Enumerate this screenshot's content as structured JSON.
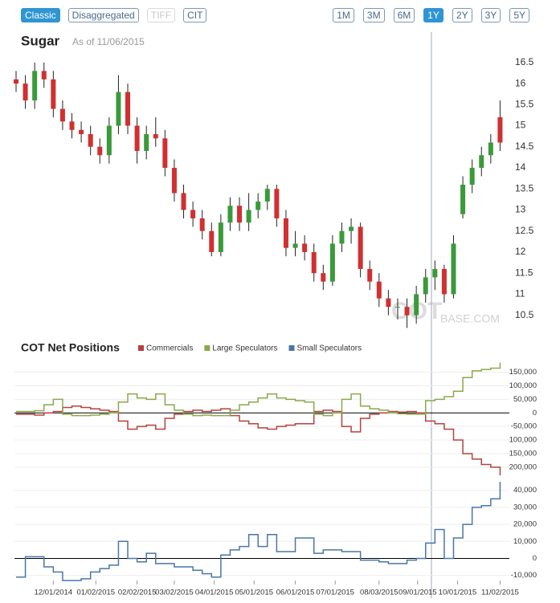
{
  "toolbar": {
    "views": [
      "Classic",
      "Disaggregated",
      "TIFF",
      "CIT"
    ],
    "ranges": [
      "1M",
      "3M",
      "6M",
      "1Y",
      "2Y",
      "3Y",
      "5Y"
    ],
    "active_view": 0,
    "disabled_views": [
      2
    ],
    "active_range": 3
  },
  "watermark": {
    "main": "COT",
    "tail": "BASE.COM"
  },
  "chart_data": [
    {
      "type": "candlestick",
      "title": "Sugar",
      "subtitle": "As of 11/06/2015",
      "up_color": "#3a9a3a",
      "down_color": "#d03030",
      "x": [
        "11/03/2014",
        "11/10/2014",
        "11/17/2014",
        "11/24/2014",
        "12/01/2014",
        "12/08/2014",
        "12/15/2014",
        "12/22/2014",
        "12/29/2014",
        "01/05/2015",
        "01/12/2015",
        "01/19/2015",
        "01/26/2015",
        "02/02/2015",
        "02/09/2015",
        "02/16/2015",
        "02/23/2015",
        "03/02/2015",
        "03/09/2015",
        "03/16/2015",
        "03/23/2015",
        "03/30/2015",
        "04/06/2015",
        "04/13/2015",
        "04/20/2015",
        "04/27/2015",
        "05/04/2015",
        "05/11/2015",
        "05/18/2015",
        "05/25/2015",
        "06/01/2015",
        "06/08/2015",
        "06/15/2015",
        "06/22/2015",
        "06/29/2015",
        "07/06/2015",
        "07/13/2015",
        "07/20/2015",
        "07/27/2015",
        "08/03/2015",
        "08/10/2015",
        "08/17/2015",
        "08/24/2015",
        "08/31/2015",
        "09/07/2015",
        "09/14/2015",
        "09/21/2015",
        "09/28/2015",
        "10/05/2015",
        "10/12/2015",
        "10/19/2015",
        "10/26/2015",
        "11/02/2015"
      ],
      "open": [
        16.1,
        16.0,
        15.6,
        16.3,
        16.1,
        15.4,
        15.1,
        14.9,
        14.8,
        14.5,
        14.3,
        15.0,
        15.8,
        15.0,
        14.4,
        14.8,
        14.7,
        14.0,
        13.4,
        13.0,
        12.8,
        12.5,
        12.0,
        12.7,
        13.1,
        12.7,
        13.0,
        13.2,
        13.5,
        12.8,
        12.1,
        12.2,
        12.0,
        11.5,
        11.3,
        12.2,
        12.5,
        12.6,
        11.6,
        11.3,
        10.9,
        10.7,
        10.7,
        10.5,
        11.0,
        11.4,
        11.6,
        11.0,
        12.9,
        13.6,
        14.0,
        14.3,
        15.2
      ],
      "high": [
        16.3,
        16.2,
        16.5,
        16.5,
        16.3,
        15.6,
        15.3,
        15.1,
        15.0,
        14.7,
        15.2,
        16.2,
        16.0,
        15.2,
        15.0,
        15.2,
        14.9,
        14.2,
        13.6,
        13.2,
        13.0,
        12.7,
        12.9,
        13.3,
        13.3,
        13.4,
        13.4,
        13.6,
        13.6,
        13.0,
        12.5,
        12.4,
        12.2,
        11.7,
        12.4,
        12.7,
        12.8,
        12.7,
        11.8,
        11.5,
        11.1,
        10.9,
        10.9,
        11.2,
        11.6,
        11.8,
        11.7,
        12.4,
        13.8,
        14.2,
        14.5,
        14.8,
        15.6
      ],
      "low": [
        15.8,
        15.4,
        15.4,
        15.9,
        15.2,
        14.9,
        14.7,
        14.6,
        14.3,
        14.1,
        14.1,
        14.8,
        14.8,
        14.1,
        14.2,
        14.5,
        13.8,
        13.2,
        12.8,
        12.6,
        12.3,
        11.9,
        11.9,
        12.5,
        12.5,
        12.5,
        12.8,
        13.0,
        12.6,
        11.9,
        11.9,
        11.8,
        11.3,
        11.1,
        11.2,
        12.0,
        12.2,
        11.4,
        11.1,
        10.7,
        10.5,
        10.4,
        10.2,
        10.3,
        10.8,
        11.1,
        10.8,
        10.9,
        12.8,
        13.4,
        13.8,
        14.1,
        14.4
      ],
      "close": [
        16.0,
        15.6,
        16.3,
        16.1,
        15.4,
        15.1,
        14.9,
        14.8,
        14.5,
        14.3,
        15.0,
        15.8,
        15.0,
        14.4,
        14.8,
        14.7,
        14.0,
        13.4,
        13.0,
        12.8,
        12.5,
        12.0,
        12.7,
        13.1,
        12.7,
        13.0,
        13.2,
        13.5,
        12.8,
        12.1,
        12.2,
        12.0,
        11.5,
        11.3,
        12.2,
        12.5,
        12.6,
        11.6,
        11.3,
        10.9,
        10.7,
        10.7,
        10.5,
        11.0,
        11.4,
        11.6,
        11.0,
        12.2,
        13.6,
        14.0,
        14.3,
        14.6,
        14.6
      ],
      "xlim": [
        "11/03/2014",
        "11/09/2015"
      ],
      "ylim": [
        10.15,
        16.65
      ],
      "yticks": [
        10.5,
        11,
        11.5,
        12,
        12.5,
        13,
        13.5,
        14,
        14.5,
        15,
        15.5,
        16,
        16.5
      ]
    },
    {
      "type": "line",
      "step": true,
      "grid": true,
      "title": "COT Net Positions",
      "x": [
        "11/03/2014",
        "11/10/2014",
        "11/17/2014",
        "11/24/2014",
        "12/01/2014",
        "12/08/2014",
        "12/15/2014",
        "12/22/2014",
        "12/29/2014",
        "01/05/2015",
        "01/12/2015",
        "01/19/2015",
        "01/26/2015",
        "02/02/2015",
        "02/09/2015",
        "02/16/2015",
        "02/23/2015",
        "03/02/2015",
        "03/09/2015",
        "03/16/2015",
        "03/23/2015",
        "03/30/2015",
        "04/06/2015",
        "04/13/2015",
        "04/20/2015",
        "04/27/2015",
        "05/04/2015",
        "05/11/2015",
        "05/18/2015",
        "05/25/2015",
        "06/01/2015",
        "06/08/2015",
        "06/15/2015",
        "06/22/2015",
        "06/29/2015",
        "07/06/2015",
        "07/13/2015",
        "07/20/2015",
        "07/27/2015",
        "08/03/2015",
        "08/10/2015",
        "08/17/2015",
        "08/24/2015",
        "08/31/2015",
        "09/07/2015",
        "09/14/2015",
        "09/21/2015",
        "09/28/2015",
        "10/05/2015",
        "10/12/2015",
        "10/19/2015",
        "10/26/2015",
        "11/02/2015"
      ],
      "series": [
        {
          "name": "Commercials",
          "color": "#b5423f",
          "values": [
            -5000,
            -5000,
            -8000,
            0,
            5000,
            20000,
            25000,
            20000,
            15000,
            10000,
            5000,
            -30000,
            -60000,
            -50000,
            -45000,
            -60000,
            -20000,
            -5000,
            5000,
            10000,
            5000,
            10000,
            15000,
            -10000,
            -30000,
            -40000,
            -55000,
            -60000,
            -50000,
            -45000,
            -40000,
            -40000,
            5000,
            10000,
            5000,
            -50000,
            -70000,
            -20000,
            -5000,
            0,
            5000,
            3000,
            5000,
            0,
            -30000,
            -40000,
            -60000,
            -100000,
            -150000,
            -170000,
            -190000,
            -200000,
            -230000
          ]
        },
        {
          "name": "Large Speculators",
          "color": "#8aa84a",
          "values": [
            5000,
            5000,
            8000,
            30000,
            50000,
            -5000,
            -10000,
            -10000,
            -8000,
            -5000,
            0,
            40000,
            70000,
            55000,
            50000,
            70000,
            30000,
            10000,
            -5000,
            -10000,
            -8000,
            -10000,
            -10000,
            10000,
            30000,
            40000,
            55000,
            70000,
            55000,
            50000,
            45000,
            40000,
            -5000,
            -10000,
            0,
            50000,
            70000,
            25000,
            15000,
            10000,
            0,
            -3000,
            -5000,
            -5000,
            45000,
            50000,
            60000,
            80000,
            130000,
            155000,
            160000,
            165000,
            185000
          ]
        }
      ],
      "xlim": [
        "11/03/2014",
        "11/09/2015"
      ],
      "ylim": [
        -230000,
        190000
      ],
      "yticks": [
        {
          "value": -200000,
          "label": "-200,000"
        },
        {
          "value": -150000,
          "label": "-150,000"
        },
        {
          "value": -100000,
          "label": "-100,000"
        },
        {
          "value": -50000,
          "label": "-50,000"
        },
        0,
        {
          "value": 50000,
          "label": "50,000"
        },
        {
          "value": 100000,
          "label": "100,000"
        },
        {
          "value": 150000,
          "label": "150,000"
        }
      ]
    },
    {
      "type": "line",
      "step": true,
      "grid": true,
      "x": [
        "11/03/2014",
        "11/10/2014",
        "11/17/2014",
        "11/24/2014",
        "12/01/2014",
        "12/08/2014",
        "12/15/2014",
        "12/22/2014",
        "12/29/2014",
        "01/05/2015",
        "01/12/2015",
        "01/19/2015",
        "01/26/2015",
        "02/02/2015",
        "02/09/2015",
        "02/16/2015",
        "02/23/2015",
        "03/02/2015",
        "03/09/2015",
        "03/16/2015",
        "03/23/2015",
        "03/30/2015",
        "04/06/2015",
        "04/13/2015",
        "04/20/2015",
        "04/27/2015",
        "05/04/2015",
        "05/11/2015",
        "05/18/2015",
        "05/25/2015",
        "06/01/2015",
        "06/08/2015",
        "06/15/2015",
        "06/22/2015",
        "06/29/2015",
        "07/06/2015",
        "07/13/2015",
        "07/20/2015",
        "07/27/2015",
        "08/03/2015",
        "08/10/2015",
        "08/17/2015",
        "08/24/2015",
        "08/31/2015",
        "09/07/2015",
        "09/14/2015",
        "09/21/2015",
        "09/28/2015",
        "10/05/2015",
        "10/12/2015",
        "10/19/2015",
        "10/26/2015",
        "11/02/2015"
      ],
      "series": [
        {
          "name": "Small Speculators",
          "color": "#4a76a8",
          "values": [
            -11000,
            1000,
            1000,
            -5000,
            -8000,
            -13000,
            -13000,
            -12000,
            -8000,
            -6000,
            -4000,
            10000,
            0,
            -2000,
            3000,
            -3000,
            -3000,
            -5000,
            -5000,
            -7000,
            -9000,
            -11000,
            2000,
            5000,
            7000,
            14000,
            7000,
            14000,
            4000,
            4000,
            12000,
            12000,
            3000,
            5000,
            5000,
            4000,
            4000,
            -1000,
            -1000,
            -2000,
            -3000,
            -3000,
            -1000,
            0,
            9000,
            17000,
            0,
            12000,
            20000,
            30000,
            31000,
            35000,
            45000
          ]
        }
      ],
      "xlim": [
        "11/03/2014",
        "11/09/2015"
      ],
      "ylim": [
        -13000,
        46000
      ],
      "yticks": [
        {
          "value": -10000,
          "label": "-10,000"
        },
        0,
        {
          "value": 10000,
          "label": "10,000"
        },
        {
          "value": 20000,
          "label": "20,000"
        },
        {
          "value": 30000,
          "label": "30,000"
        },
        {
          "value": 40000,
          "label": "40,000"
        }
      ],
      "xticks": [
        "12/01/2014",
        "01/02/2015",
        "02/02/2015",
        "03/02/2015",
        "04/01/2015",
        "05/01/2015",
        "06/01/2015",
        "07/01/2015",
        "08/03/2015",
        "09/01/2015",
        "10/01/2015",
        "11/02/2015"
      ]
    }
  ]
}
